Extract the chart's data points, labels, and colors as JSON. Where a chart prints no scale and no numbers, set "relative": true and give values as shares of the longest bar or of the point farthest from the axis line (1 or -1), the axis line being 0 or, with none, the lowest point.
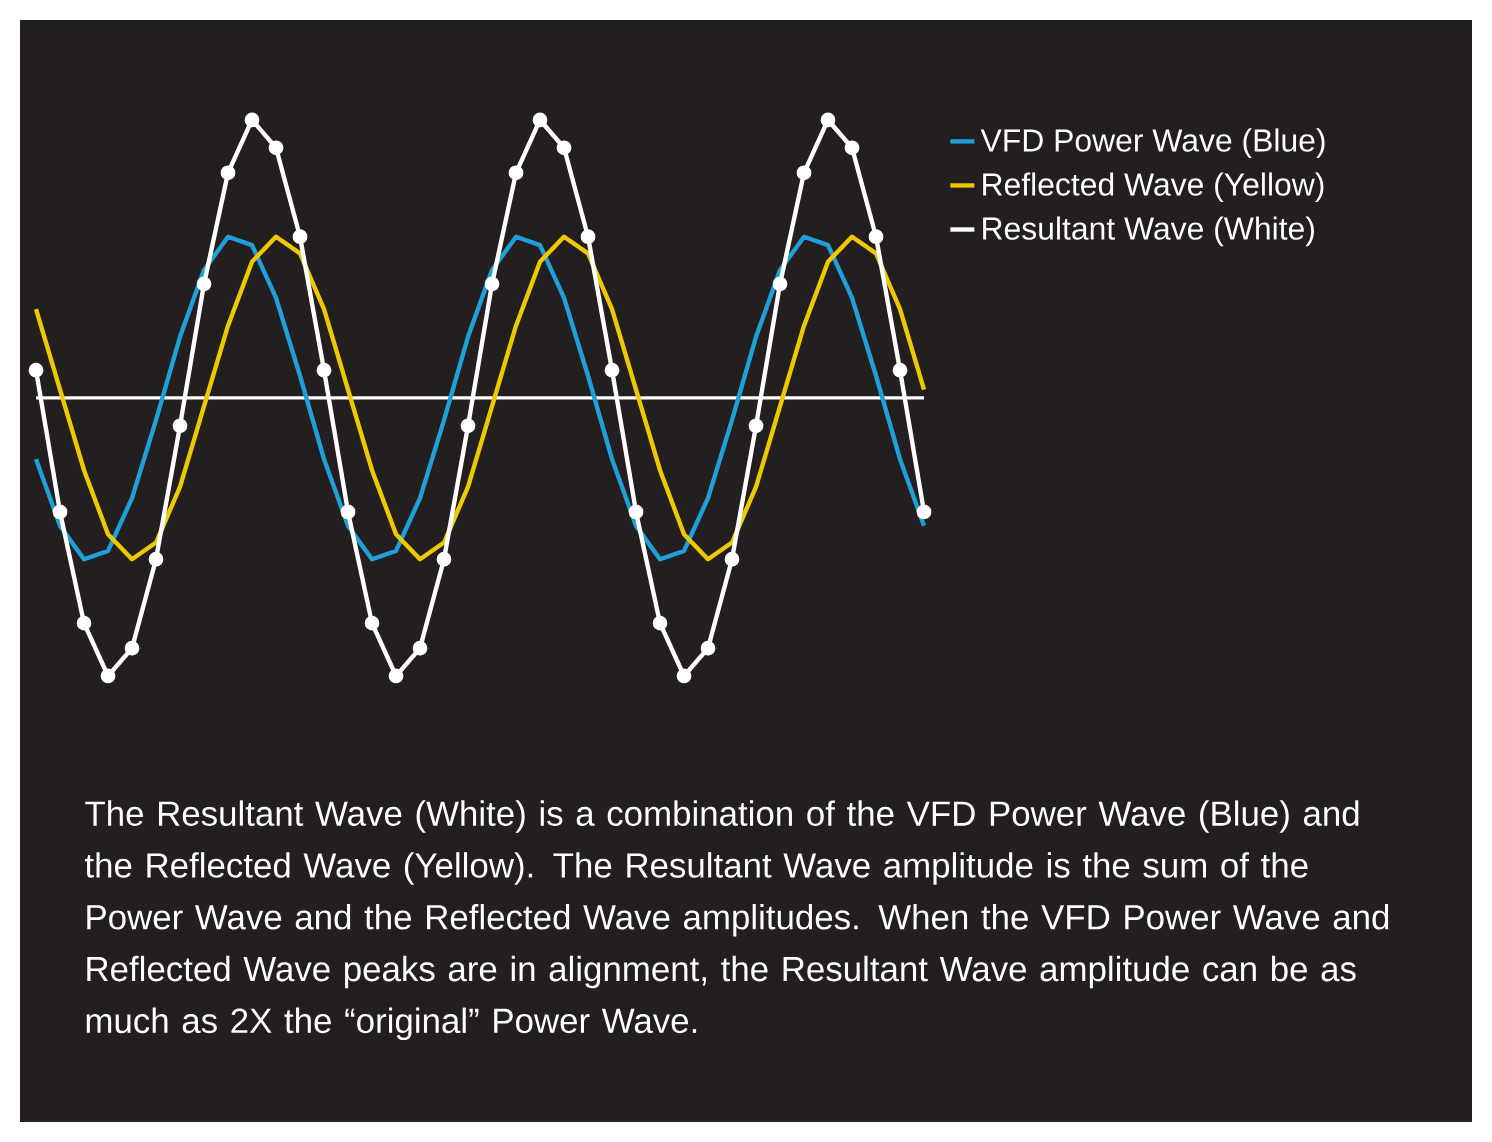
{
  "chart_data": {
    "type": "line",
    "relative": true,
    "legend": "right",
    "marker": "none",
    "line_style": "solid",
    "categories": [
      null,
      null,
      null,
      null,
      null,
      null,
      null,
      null,
      null,
      null,
      null,
      null,
      null,
      null,
      null,
      null,
      null,
      null,
      null,
      null,
      null,
      null,
      null,
      null,
      null,
      null,
      null,
      null,
      null,
      null,
      null,
      null,
      null,
      null,
      null,
      null,
      null,
      null
    ],
    "series": [
      {
        "name": "VFD Power Wave (Blue)",
        "color": "#1ea0d8",
        "values": [
          -0.22,
          -0.46,
          -0.58,
          -0.55,
          -0.36,
          -0.08,
          0.22,
          0.46,
          0.58,
          0.55,
          0.36,
          0.08,
          -0.22,
          -0.46,
          -0.58,
          -0.55,
          -0.36,
          -0.08,
          0.22,
          0.46,
          0.58,
          0.55,
          0.36,
          0.08,
          -0.22,
          -0.46,
          -0.58,
          -0.55,
          -0.36,
          -0.08,
          0.22,
          0.46,
          0.58,
          0.55,
          0.36,
          0.08,
          -0.22,
          -0.46
        ]
      },
      {
        "name": "Reflected Wave (Yellow)",
        "color": "#f0c800",
        "values": [
          0.32,
          0.03,
          -0.26,
          -0.49,
          -0.58,
          -0.52,
          -0.32,
          -0.03,
          0.26,
          0.49,
          0.58,
          0.52,
          0.32,
          0.03,
          -0.26,
          -0.49,
          -0.58,
          -0.52,
          -0.32,
          -0.03,
          0.26,
          0.49,
          0.58,
          0.52,
          0.32,
          0.03,
          -0.26,
          -0.49,
          -0.58,
          -0.52,
          -0.32,
          -0.03,
          0.26,
          0.49,
          0.58,
          0.52,
          0.32,
          0.03
        ]
      },
      {
        "name": "Resultant Wave (White)",
        "color": "#ffffff",
        "marker": "circle",
        "values": [
          0.1,
          -0.41,
          -0.81,
          -1.0,
          -0.9,
          -0.58,
          -0.1,
          0.41,
          0.81,
          1.0,
          0.9,
          0.58,
          0.1,
          -0.41,
          -0.81,
          -1.0,
          -0.9,
          -0.58,
          -0.1,
          0.41,
          0.81,
          1.0,
          0.9,
          0.58,
          0.1,
          -0.41,
          -0.81,
          -1.0,
          -0.9,
          -0.58,
          -0.1,
          0.41,
          0.81,
          1.0,
          0.9,
          0.58,
          0.1,
          -0.41
        ]
      }
    ],
    "annotations": [
      "The Resultant Wave (White) is a combination of the VFD Power Wave (Blue) and the Reflected Wave (Yellow). The Resultant Wave amplitude is the sum of the Power Wave and the Reflected Wave amplitudes. When the VFD Power Wave and Reflected Wave peaks are in alignment, the Resultant Wave amplitude can be as much as 2X the “original” Power Wave."
    ]
  }
}
